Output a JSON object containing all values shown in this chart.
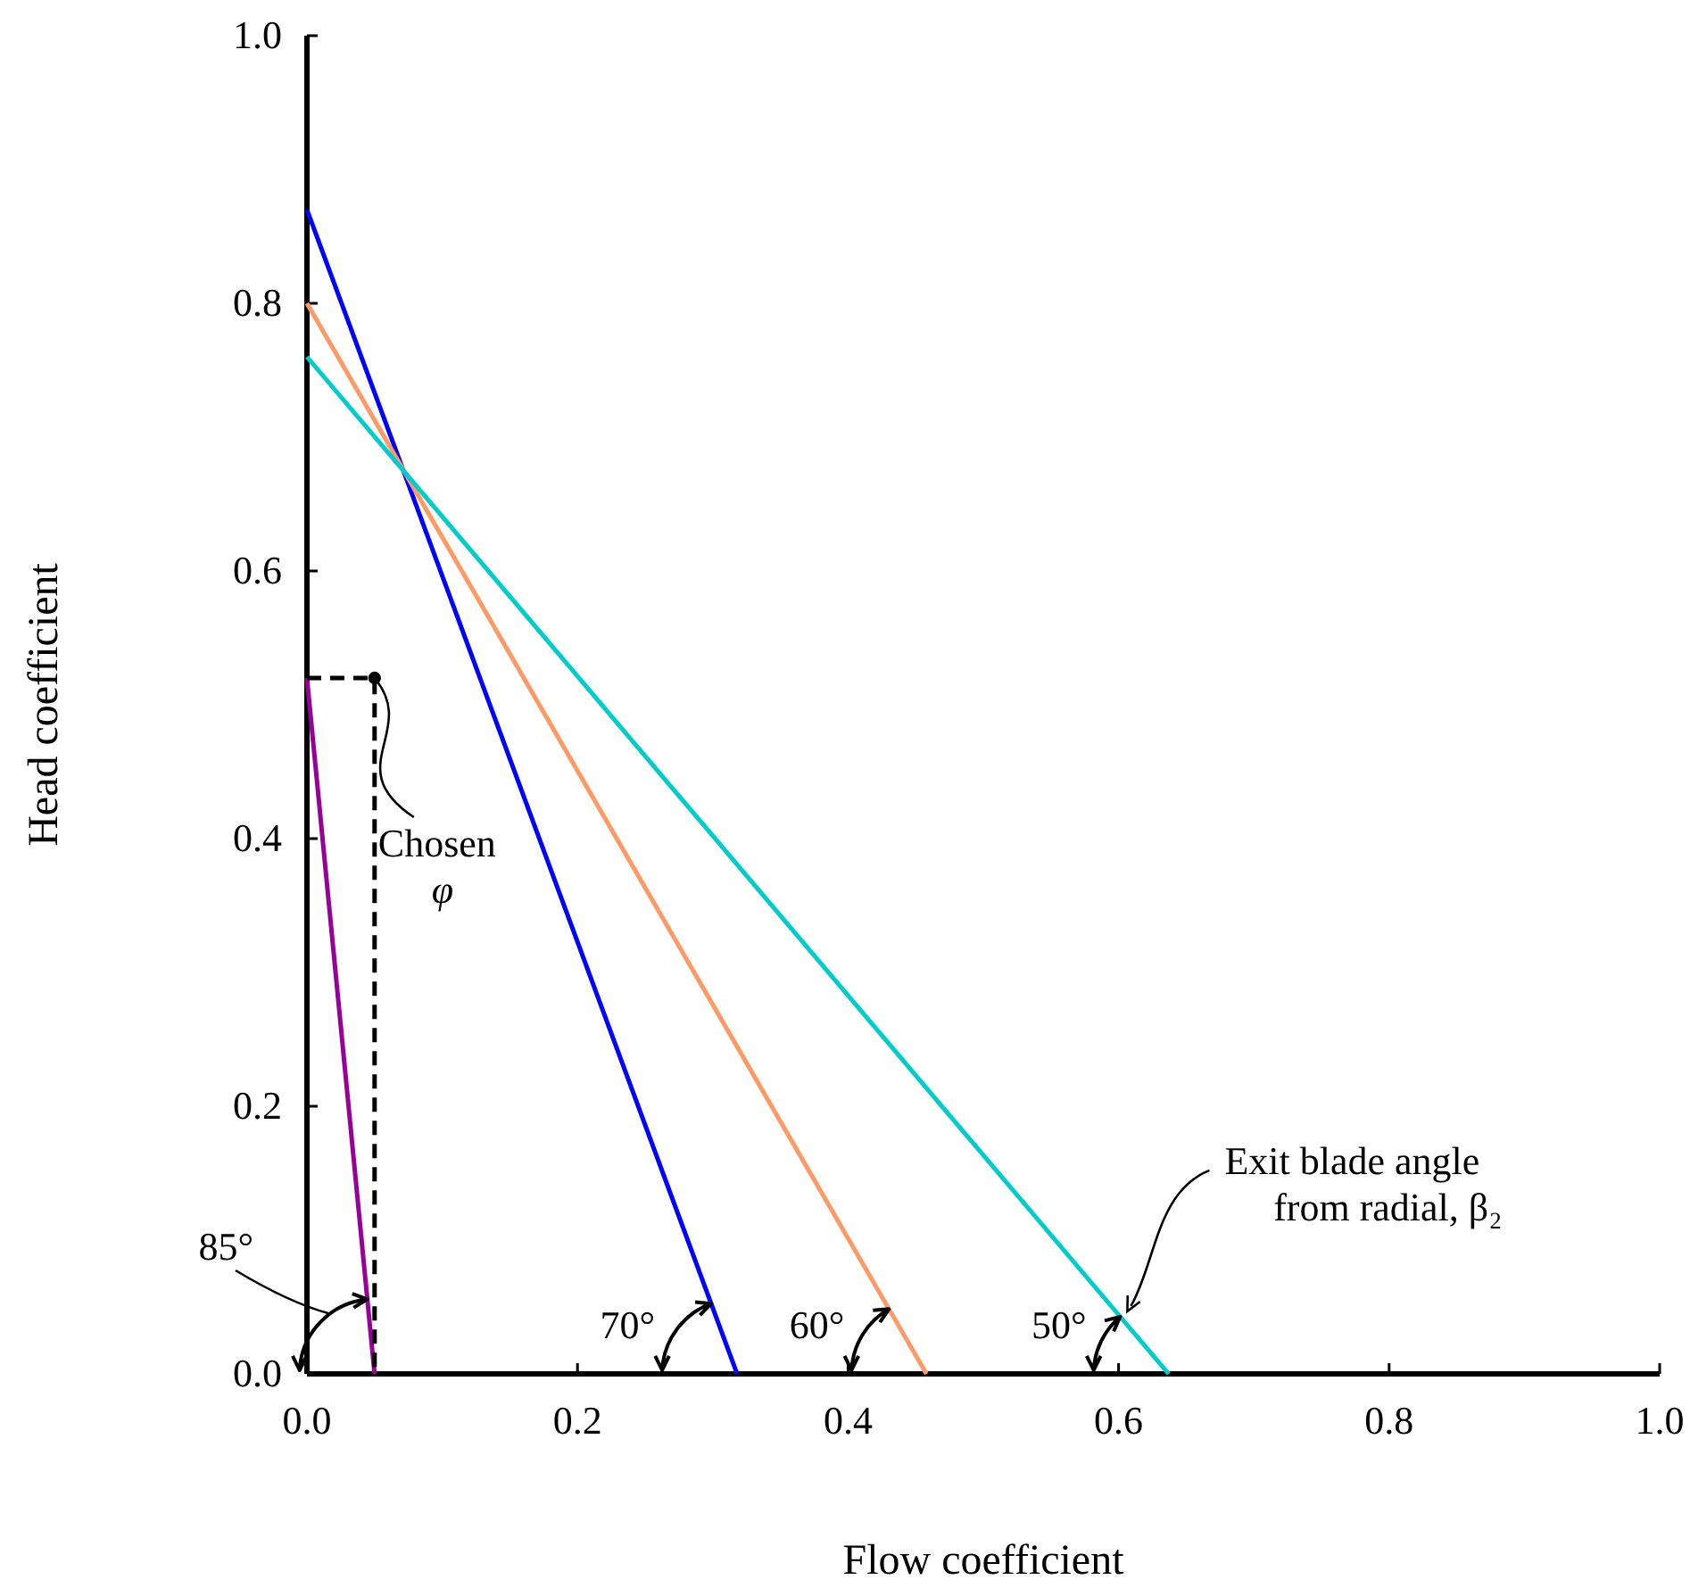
{
  "chart_data": {
    "type": "line",
    "xlabel": "Flow coefficient",
    "ylabel": "Head coefficient",
    "xlim": [
      0,
      1
    ],
    "ylim": [
      0,
      1
    ],
    "xticks": [
      {
        "value": 0,
        "label": "0.0"
      },
      {
        "value": 0.2,
        "label": "0.2"
      },
      {
        "value": 0.4,
        "label": "0.4"
      },
      {
        "value": 0.6,
        "label": "0.6"
      },
      {
        "value": 0.8,
        "label": "0.8"
      },
      {
        "value": 1,
        "label": "1.0"
      }
    ],
    "yticks": [
      {
        "value": 0,
        "label": "0.0"
      },
      {
        "value": 0.2,
        "label": "0.2"
      },
      {
        "value": 0.4,
        "label": "0.4"
      },
      {
        "value": 0.6,
        "label": "0.6"
      },
      {
        "value": 0.8,
        "label": "0.8"
      },
      {
        "value": 1,
        "label": "1.0"
      }
    ],
    "grid": false,
    "marker": "none",
    "line_style": "solid",
    "series": [
      {
        "name": "85°",
        "color": "#990099",
        "x": [
          0,
          0.05
        ],
        "values": [
          0.52,
          0
        ]
      },
      {
        "name": "70°",
        "color": "#0000ff",
        "x": [
          0,
          0.318
        ],
        "values": [
          0.87,
          0
        ]
      },
      {
        "name": "60°",
        "color": "#ff9966",
        "x": [
          0,
          0.458
        ],
        "values": [
          0.8,
          0
        ]
      },
      {
        "name": "50°",
        "color": "#00cccc",
        "x": [
          0,
          0.637
        ],
        "values": [
          0.76,
          0
        ]
      },
      {
        "type": "line",
        "color": "#000000",
        "line_style": "dashed",
        "x": [
          0,
          0.05,
          0.05
        ],
        "values": [
          0.52,
          0.52,
          0
        ]
      },
      {
        "type": "scatter",
        "color": "#000000",
        "marker": "circle",
        "x": [
          0.05
        ],
        "values": [
          0.52
        ]
      }
    ],
    "annotations": [
      {
        "text": "Chosen φ",
        "x": 0.05,
        "y": 0.52
      },
      "Exit blade angle from radial, β₂"
    ]
  }
}
